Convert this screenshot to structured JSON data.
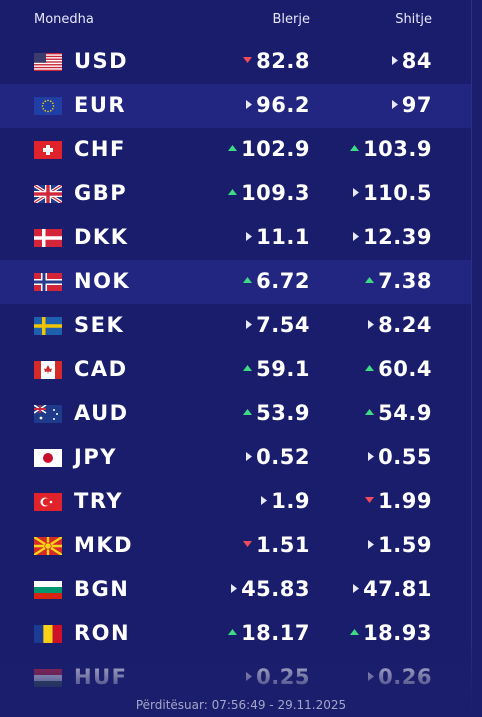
{
  "header": {
    "currency": "Monedha",
    "buy": "Blerje",
    "sell": "Shitje"
  },
  "rows": [
    {
      "code": "USD",
      "buy": "82.8",
      "buy_trend": "down",
      "sell": "84",
      "sell_trend": "flat"
    },
    {
      "code": "EUR",
      "buy": "96.2",
      "buy_trend": "flat",
      "sell": "97",
      "sell_trend": "flat"
    },
    {
      "code": "CHF",
      "buy": "102.9",
      "buy_trend": "up",
      "sell": "103.9",
      "sell_trend": "up"
    },
    {
      "code": "GBP",
      "buy": "109.3",
      "buy_trend": "up",
      "sell": "110.5",
      "sell_trend": "flat"
    },
    {
      "code": "DKK",
      "buy": "11.1",
      "buy_trend": "flat",
      "sell": "12.39",
      "sell_trend": "flat"
    },
    {
      "code": "NOK",
      "buy": "6.72",
      "buy_trend": "up",
      "sell": "7.38",
      "sell_trend": "up"
    },
    {
      "code": "SEK",
      "buy": "7.54",
      "buy_trend": "flat",
      "sell": "8.24",
      "sell_trend": "flat"
    },
    {
      "code": "CAD",
      "buy": "59.1",
      "buy_trend": "up",
      "sell": "60.4",
      "sell_trend": "up"
    },
    {
      "code": "AUD",
      "buy": "53.9",
      "buy_trend": "up",
      "sell": "54.9",
      "sell_trend": "up"
    },
    {
      "code": "JPY",
      "buy": "0.52",
      "buy_trend": "flat",
      "sell": "0.55",
      "sell_trend": "flat"
    },
    {
      "code": "TRY",
      "buy": "1.9",
      "buy_trend": "flat",
      "sell": "1.99",
      "sell_trend": "down"
    },
    {
      "code": "MKD",
      "buy": "1.51",
      "buy_trend": "down",
      "sell": "1.59",
      "sell_trend": "flat"
    },
    {
      "code": "BGN",
      "buy": "45.83",
      "buy_trend": "flat",
      "sell": "47.81",
      "sell_trend": "flat"
    },
    {
      "code": "RON",
      "buy": "18.17",
      "buy_trend": "up",
      "sell": "18.93",
      "sell_trend": "up"
    },
    {
      "code": "HUF",
      "buy": "0.25",
      "buy_trend": "flat",
      "sell": "0.26",
      "sell_trend": "flat"
    }
  ],
  "footer": "Përditësuar: 07:56:49 - 29.11.2025"
}
